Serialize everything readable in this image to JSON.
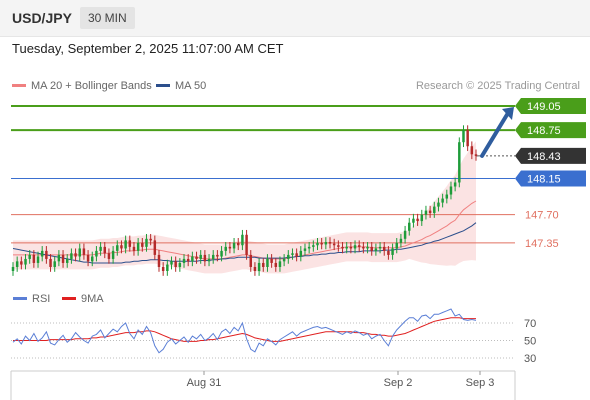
{
  "header": {
    "symbol": "USD/JPY",
    "timeframe": "30 MIN"
  },
  "datetime": "Tuesday, September 2, 2025 11:07:00 AM CET",
  "legend": {
    "ma20_label": "MA 20 + Bollinger Bands",
    "ma50_label": "MA 50",
    "ma20_color": "#f08080",
    "ma50_color": "#2c4f8c",
    "credit": "Research © 2025 Trading Central"
  },
  "rsi_legend": {
    "rsi_label": "RSI",
    "ma9_label": "9MA",
    "rsi_color": "#5b7fd6",
    "ma9_color": "#e02020"
  },
  "colors": {
    "resistance": "#4a9e1a",
    "pivot": "#3a6fcf",
    "support": "#e07060",
    "last_price": "#333333",
    "arrow": "#2f5d9e",
    "bull_candle": "#1e9c3a",
    "bear_candle": "#b52a2a"
  },
  "chart_data": [
    {
      "type": "candlestick",
      "title": "USD/JPY 30 MIN",
      "x_tick_labels": [
        "Aug 31",
        "Sep 2",
        "Sep 3"
      ],
      "ylim": [
        146.9,
        149.2
      ],
      "levels": [
        {
          "label": "149.05",
          "value": 149.05,
          "kind": "resistance"
        },
        {
          "label": "148.75",
          "value": 148.75,
          "kind": "resistance"
        },
        {
          "label": "148.43",
          "value": 148.43,
          "kind": "last_price"
        },
        {
          "label": "148.15",
          "value": 148.15,
          "kind": "pivot"
        },
        {
          "label": "147.70",
          "value": 147.7,
          "kind": "support"
        },
        {
          "label": "147.35",
          "value": 147.35,
          "kind": "support"
        }
      ],
      "close": [
        147.05,
        147.12,
        147.08,
        147.15,
        147.2,
        147.1,
        147.18,
        147.25,
        147.15,
        147.05,
        147.12,
        147.2,
        147.1,
        147.15,
        147.22,
        147.18,
        147.28,
        147.2,
        147.12,
        147.18,
        147.25,
        147.3,
        147.22,
        147.15,
        147.25,
        147.32,
        147.28,
        147.38,
        147.3,
        147.25,
        147.35,
        147.3,
        147.4,
        147.38,
        147.2,
        147.05,
        147.0,
        147.08,
        147.12,
        147.05,
        147.1,
        147.15,
        147.12,
        147.18,
        147.15,
        147.2,
        147.12,
        147.15,
        147.2,
        147.18,
        147.25,
        147.3,
        147.28,
        147.35,
        147.32,
        147.45,
        147.2,
        147.05,
        147.0,
        147.1,
        147.05,
        147.15,
        147.1,
        147.05,
        147.12,
        147.15,
        147.2,
        147.22,
        147.18,
        147.25,
        147.28,
        147.3,
        147.32,
        147.35,
        147.33,
        147.36,
        147.34,
        147.32,
        147.3,
        147.28,
        147.3,
        147.28,
        147.32,
        147.3,
        147.28,
        147.3,
        147.25,
        147.28,
        147.3,
        147.25,
        147.2,
        147.28,
        147.35,
        147.4,
        147.5,
        147.6,
        147.65,
        147.62,
        147.7,
        147.75,
        147.72,
        147.8,
        147.85,
        147.9,
        147.95,
        148.05,
        148.1,
        148.6,
        148.75,
        148.55,
        148.45,
        148.43
      ],
      "ma20": [
        147.2,
        147.2,
        147.2,
        147.2,
        147.2,
        147.2,
        147.2,
        147.2,
        147.2,
        147.2,
        147.2,
        147.2,
        147.2,
        147.2,
        147.2,
        147.2,
        147.2,
        147.2,
        147.2,
        147.2,
        147.21,
        147.22,
        147.22,
        147.22,
        147.23,
        147.23,
        147.24,
        147.25,
        147.25,
        147.25,
        147.26,
        147.26,
        147.27,
        147.27,
        147.27,
        147.26,
        147.25,
        147.24,
        147.23,
        147.22,
        147.21,
        147.2,
        147.19,
        147.18,
        147.17,
        147.16,
        147.15,
        147.15,
        147.15,
        147.15,
        147.15,
        147.16,
        147.17,
        147.18,
        147.19,
        147.2,
        147.2,
        147.19,
        147.18,
        147.17,
        147.16,
        147.15,
        147.15,
        147.15,
        147.15,
        147.15,
        147.16,
        147.17,
        147.18,
        147.19,
        147.2,
        147.21,
        147.22,
        147.23,
        147.24,
        147.25,
        147.26,
        147.27,
        147.28,
        147.29,
        147.3,
        147.3,
        147.3,
        147.3,
        147.3,
        147.3,
        147.29,
        147.29,
        147.29,
        147.29,
        147.29,
        147.29,
        147.29,
        147.3,
        147.31,
        147.33,
        147.35,
        147.37,
        147.39,
        147.42,
        147.44,
        147.47,
        147.5,
        147.53,
        147.56,
        147.6,
        147.63,
        147.7,
        147.76,
        147.8,
        147.84,
        147.87
      ],
      "ma50": [
        147.28,
        147.27,
        147.26,
        147.25,
        147.24,
        147.23,
        147.22,
        147.21,
        147.2,
        147.19,
        147.18,
        147.17,
        147.16,
        147.15,
        147.14,
        147.13,
        147.12,
        147.11,
        147.11,
        147.1,
        147.1,
        147.1,
        147.1,
        147.1,
        147.1,
        147.1,
        147.1,
        147.11,
        147.11,
        147.12,
        147.12,
        147.13,
        147.13,
        147.14,
        147.14,
        147.14,
        147.13,
        147.13,
        147.12,
        147.12,
        147.12,
        147.12,
        147.12,
        147.12,
        147.12,
        147.13,
        147.13,
        147.13,
        147.14,
        147.14,
        147.15,
        147.15,
        147.16,
        147.16,
        147.17,
        147.17,
        147.17,
        147.17,
        147.17,
        147.16,
        147.16,
        147.16,
        147.16,
        147.16,
        147.16,
        147.16,
        147.17,
        147.17,
        147.18,
        147.18,
        147.19,
        147.19,
        147.2,
        147.2,
        147.21,
        147.21,
        147.22,
        147.22,
        147.23,
        147.23,
        147.24,
        147.24,
        147.24,
        147.24,
        147.25,
        147.25,
        147.25,
        147.25,
        147.25,
        147.26,
        147.26,
        147.26,
        147.27,
        147.27,
        147.28,
        147.29,
        147.3,
        147.31,
        147.32,
        147.34,
        147.35,
        147.37,
        147.38,
        147.4,
        147.42,
        147.44,
        147.46,
        147.48,
        147.5,
        147.53,
        147.56,
        147.6
      ]
    },
    {
      "type": "line",
      "title": "RSI",
      "ylim": [
        20,
        85
      ],
      "y_ticks": [
        70,
        50,
        30
      ],
      "series": [
        {
          "name": "RSI",
          "values": [
            48,
            52,
            46,
            55,
            50,
            58,
            49,
            53,
            60,
            47,
            45,
            51,
            56,
            48,
            52,
            59,
            54,
            50,
            47,
            55,
            57,
            62,
            53,
            58,
            63,
            60,
            66,
            70,
            58,
            52,
            62,
            57,
            66,
            59,
            44,
            36,
            40,
            48,
            52,
            46,
            50,
            54,
            48,
            55,
            52,
            57,
            50,
            53,
            58,
            51,
            60,
            63,
            58,
            65,
            61,
            70,
            52,
            40,
            37,
            47,
            44,
            52,
            49,
            45,
            51,
            54,
            57,
            60,
            55,
            59,
            61,
            63,
            65,
            66,
            64,
            65,
            63,
            61,
            59,
            57,
            60,
            58,
            61,
            59,
            56,
            58,
            52,
            55,
            57,
            50,
            44,
            55,
            62,
            67,
            72,
            76,
            76,
            72,
            78,
            79,
            75,
            80,
            80,
            82,
            84,
            86,
            78,
            80,
            74,
            73,
            74,
            73
          ]
        },
        {
          "name": "9MA",
          "values": [
            50,
            50,
            50,
            50,
            50,
            50,
            50,
            50,
            50,
            51,
            51,
            51,
            51,
            51,
            51,
            52,
            52,
            52,
            52,
            53,
            53,
            54,
            54,
            55,
            56,
            57,
            58,
            59,
            59,
            59,
            60,
            60,
            61,
            61,
            60,
            58,
            56,
            54,
            52,
            51,
            50,
            49,
            49,
            49,
            49,
            50,
            50,
            51,
            51,
            52,
            53,
            54,
            55,
            56,
            57,
            58,
            57,
            55,
            53,
            52,
            51,
            50,
            49,
            49,
            49,
            50,
            51,
            52,
            53,
            54,
            55,
            56,
            57,
            58,
            59,
            60,
            60,
            60,
            60,
            60,
            60,
            60,
            59,
            59,
            59,
            58,
            57,
            57,
            56,
            56,
            55,
            55,
            56,
            57,
            58,
            60,
            62,
            64,
            66,
            68,
            70,
            72,
            73,
            74,
            75,
            76,
            76,
            76,
            75,
            75,
            75,
            75
          ]
        }
      ],
      "x_tick_labels": [
        "Aug 31",
        "Sep 2",
        "Sep 3"
      ]
    }
  ]
}
